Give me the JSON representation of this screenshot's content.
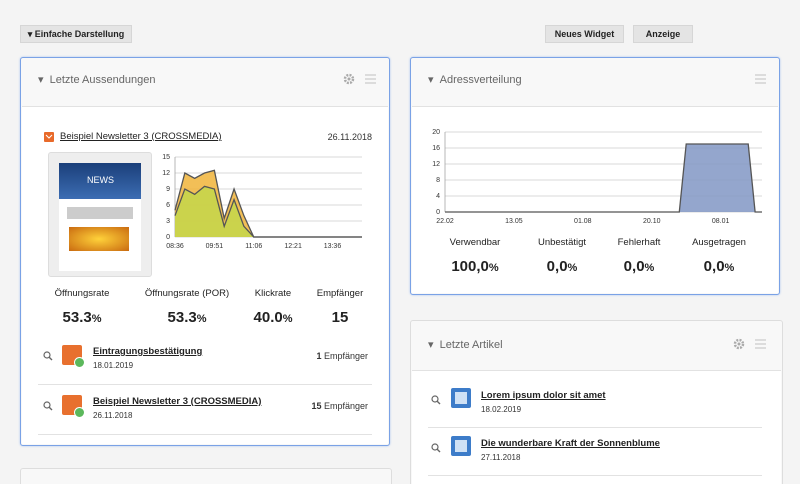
{
  "toolbar": {
    "simple_view": "Einfache Darstellung",
    "new_widget": "Neues Widget",
    "display": "Anzeige"
  },
  "mailings": {
    "title": "Letzte Aussendungen",
    "newsletter": {
      "name": "Beispiel Newsletter 3 (CROSSMEDIA)",
      "date": "26.11.2018",
      "thumbnail_heading": "NEWS"
    },
    "chart": {
      "type": "area",
      "categories": [
        "08:36",
        null,
        null,
        null,
        "09:51",
        null,
        null,
        null,
        "11:06",
        null,
        null,
        null,
        "12:21",
        null,
        null,
        null,
        "13:36",
        null,
        null,
        null
      ],
      "series": [
        {
          "color": "#f0b43a",
          "values": [
            5,
            12,
            11,
            12,
            12.5,
            3.5,
            9,
            4,
            0,
            0,
            0,
            0,
            0,
            0,
            0,
            0,
            0,
            0,
            0,
            0
          ]
        },
        {
          "color": "#c4d64a",
          "values": [
            4,
            9,
            8,
            9.5,
            9,
            2,
            7,
            2,
            0,
            0,
            0,
            0,
            0,
            0,
            0,
            0,
            0,
            0,
            0,
            0
          ]
        }
      ],
      "ylim": [
        0,
        15
      ],
      "yticks": [
        0,
        3,
        6,
        9,
        12,
        15
      ],
      "grid": true
    },
    "stats": [
      {
        "label": "Öffnungsrate",
        "value": "53.3",
        "unit": "%"
      },
      {
        "label": "Öffnungsrate (POR)",
        "value": "53.3",
        "unit": "%"
      },
      {
        "label": "Klickrate",
        "value": "40.0",
        "unit": "%"
      },
      {
        "label": "Empfänger",
        "value": "15",
        "unit": null
      }
    ],
    "items": [
      {
        "name": "Eintragungsbestätigung",
        "date": "18.01.2019",
        "count": "1",
        "count_label": "Empfänger"
      },
      {
        "name": "Beispiel Newsletter 3 (CROSSMEDIA)",
        "date": "26.11.2018",
        "count": "15",
        "count_label": "Empfänger"
      }
    ]
  },
  "addresses": {
    "title": "Adressverteilung",
    "chart": {
      "type": "area",
      "categories": [
        "22.02",
        null,
        null,
        null,
        null,
        null,
        null,
        null,
        null,
        null,
        "13.05",
        null,
        null,
        null,
        null,
        null,
        null,
        null,
        null,
        null,
        "01.08",
        null,
        null,
        null,
        null,
        null,
        null,
        null,
        null,
        null,
        "20.10",
        null,
        null,
        null,
        null,
        null,
        null,
        null,
        null,
        null,
        "08.01",
        null,
        null,
        null,
        null,
        null,
        null
      ],
      "series": [
        {
          "color": "#8196c4",
          "values": [
            0,
            0,
            0,
            0,
            0,
            0,
            0,
            0,
            0,
            0,
            0,
            0,
            0,
            0,
            0,
            0,
            0,
            0,
            0,
            0,
            0,
            0,
            0,
            0,
            0,
            0,
            0,
            0,
            0,
            0,
            0,
            0,
            0,
            0,
            0,
            17,
            17,
            17,
            17,
            17,
            17,
            17,
            17,
            17,
            17,
            0,
            0
          ]
        }
      ],
      "ylim": [
        0,
        20
      ],
      "yticks": [
        0,
        4,
        8,
        12,
        16,
        20
      ],
      "grid": true
    },
    "stats": [
      {
        "label": "Verwendbar",
        "value": "100,0",
        "unit": "%"
      },
      {
        "label": "Unbestätigt",
        "value": "0,0",
        "unit": "%"
      },
      {
        "label": "Fehlerhaft",
        "value": "0,0",
        "unit": "%"
      },
      {
        "label": "Ausgetragen",
        "value": "0,0",
        "unit": "%"
      }
    ]
  },
  "articles": {
    "title": "Letzte Artikel",
    "items": [
      {
        "title": "Lorem ipsum dolor sit amet",
        "date": "18.02.2019"
      },
      {
        "title": "Die wunderbare Kraft der Sonnenblume",
        "date": "27.11.2018"
      }
    ]
  }
}
